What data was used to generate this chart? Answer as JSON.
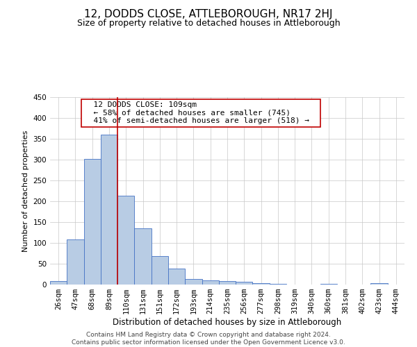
{
  "title": "12, DODDS CLOSE, ATTLEBOROUGH, NR17 2HJ",
  "subtitle": "Size of property relative to detached houses in Attleborough",
  "xlabel": "Distribution of detached houses by size in Attleborough",
  "ylabel": "Number of detached properties",
  "footer_line1": "Contains HM Land Registry data © Crown copyright and database right 2024.",
  "footer_line2": "Contains public sector information licensed under the Open Government Licence v3.0.",
  "annotation_title": "12 DODDS CLOSE: 109sqm",
  "annotation_line2": "← 58% of detached houses are smaller (745)",
  "annotation_line3": "41% of semi-detached houses are larger (518) →",
  "bar_color": "#b8cce4",
  "bar_edge_color": "#4472c4",
  "highlight_line_color": "#c00000",
  "annotation_box_color": "#ffffff",
  "annotation_box_edge_color": "#c00000",
  "background_color": "#ffffff",
  "grid_color": "#c8c8c8",
  "categories": [
    "26sqm",
    "47sqm",
    "68sqm",
    "89sqm",
    "110sqm",
    "131sqm",
    "151sqm",
    "172sqm",
    "193sqm",
    "214sqm",
    "235sqm",
    "256sqm",
    "277sqm",
    "298sqm",
    "319sqm",
    "340sqm",
    "360sqm",
    "381sqm",
    "402sqm",
    "423sqm",
    "444sqm"
  ],
  "values": [
    8,
    108,
    302,
    360,
    213,
    135,
    68,
    38,
    13,
    10,
    9,
    6,
    3,
    2,
    0,
    0,
    2,
    0,
    0,
    3,
    0
  ],
  "highlight_index": 4,
  "ylim": [
    0,
    450
  ],
  "yticks": [
    0,
    50,
    100,
    150,
    200,
    250,
    300,
    350,
    400,
    450
  ],
  "title_fontsize": 11,
  "subtitle_fontsize": 9,
  "xlabel_fontsize": 8.5,
  "ylabel_fontsize": 8,
  "tick_fontsize": 7.5,
  "annotation_fontsize": 8,
  "footer_fontsize": 6.5
}
